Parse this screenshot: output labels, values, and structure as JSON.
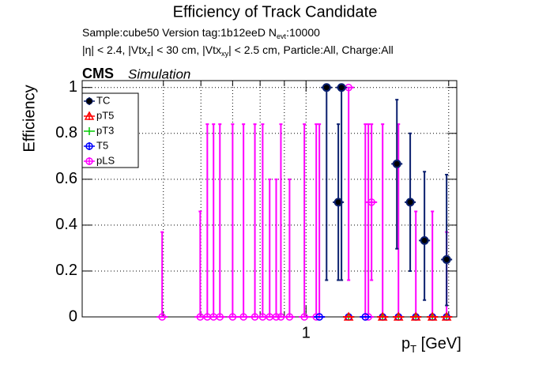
{
  "chart_data": {
    "type": "errorbar",
    "title": "Efficiency of Track Candidate",
    "subtitle_lines": [
      [
        {
          "text": "Sample:cube50   Version tag:1b12eeD  N",
          "sub": false
        },
        {
          "text": "evt",
          "sub": true
        },
        {
          "text": ":10000",
          "sub": false
        }
      ],
      [
        {
          "text": "|η| < 2.4, |Vtx",
          "sub": false
        },
        {
          "text": "z",
          "sub": true
        },
        {
          "text": "| < 30 cm, |Vtx",
          "sub": false
        },
        {
          "text": "xy",
          "sub": true
        },
        {
          "text": "| < 2.5 cm, Particle:All, Charge:All",
          "sub": false
        }
      ]
    ],
    "cms_label": "CMS",
    "cms_sublabel": "Simulation",
    "xlabel": [
      {
        "text": "p",
        "sub": false
      },
      {
        "text": "T",
        "sub": true
      },
      {
        "text": " [GeV]",
        "sub": false
      }
    ],
    "ylabel": "Efficiency",
    "xscale": "log",
    "xlim": [
      0.337,
      2.08
    ],
    "xticks": [
      1
    ],
    "xminor": [
      0.5,
      0.6,
      0.7,
      0.8,
      0.9,
      2
    ],
    "ylim": [
      0,
      1.03
    ],
    "yticks": [
      0,
      0.2,
      0.4,
      0.6,
      0.8,
      1
    ],
    "grid": true,
    "legend_position": "upper left",
    "series": [
      {
        "name": "pLS",
        "color": "#ff00ff",
        "marker": "open-circle",
        "x": [
          0.497,
          0.598,
          0.619,
          0.638,
          0.658,
          0.7,
          0.738,
          0.78,
          0.81,
          0.838,
          0.865,
          0.885,
          0.923,
          0.992,
          1.051,
          1.067,
          1.23,
          1.334,
          1.354,
          1.375,
          1.451,
          1.567,
          1.705,
          1.848,
          1.98
        ],
        "values": [
          0,
          0,
          0,
          0,
          0,
          0,
          0,
          0,
          0,
          0,
          0,
          0,
          0,
          0,
          0,
          0,
          1,
          0,
          0,
          0.5,
          0,
          0,
          0,
          0,
          0
        ],
        "err_low": [
          0,
          0,
          0,
          0,
          0,
          0,
          0,
          0,
          0,
          0,
          0,
          0,
          0,
          0,
          0,
          0,
          0.84,
          0,
          0,
          0.34,
          0,
          0,
          0,
          0,
          0
        ],
        "err_high": [
          0.37,
          0.46,
          0.84,
          0.84,
          0.84,
          0.84,
          0.84,
          0.84,
          0.84,
          0.6,
          0.6,
          0.84,
          0.6,
          0.84,
          0.84,
          0.84,
          0,
          0.84,
          0.84,
          0.34,
          0.84,
          0.84,
          0.46,
          0.46,
          0.37
        ]
      },
      {
        "name": "T5",
        "color": "#0000ff",
        "marker": "open-circle",
        "x": [
          1.067,
          1.23,
          1.334,
          1.451,
          1.567,
          1.705,
          1.848,
          1.98
        ],
        "values": [
          0,
          0,
          0,
          0,
          0,
          0,
          0,
          0
        ],
        "err_low": [
          0,
          0,
          0,
          0,
          0,
          0,
          0,
          0
        ],
        "err_high": [
          0,
          0,
          0,
          0,
          0,
          0,
          0,
          0
        ]
      },
      {
        "name": "pT3",
        "color": "#00cc00",
        "marker": "open-cross",
        "x": [
          1.23,
          1.451,
          1.567,
          1.705,
          1.848,
          1.98
        ],
        "values": [
          0,
          0,
          0,
          0,
          0,
          0
        ],
        "err_low": [
          0,
          0,
          0,
          0,
          0,
          0
        ],
        "err_high": [
          0,
          0,
          0,
          0,
          0,
          0
        ]
      },
      {
        "name": "pT5",
        "color": "#ff0000",
        "marker": "open-triangle",
        "x": [
          1.23,
          1.451,
          1.567,
          1.705,
          1.848,
          1.98
        ],
        "values": [
          0,
          0,
          0,
          0,
          0,
          0
        ],
        "err_low": [
          0,
          0,
          0,
          0,
          0,
          0
        ],
        "err_high": [
          0,
          0,
          0,
          0,
          0,
          0
        ]
      },
      {
        "name": "TC",
        "color": "#0a1f6e",
        "marker": "filled-circle",
        "x": [
          1.105,
          1.17,
          1.188,
          1.555,
          1.659,
          1.778,
          1.98
        ],
        "values": [
          1,
          0.5,
          1,
          0.667,
          0.5,
          0.333,
          0.25
        ],
        "err_low": [
          0.84,
          0.34,
          0.84,
          0.37,
          0.3,
          0.26,
          0.2
        ],
        "err_high": [
          0,
          0.34,
          0,
          0.28,
          0.3,
          0.3,
          0.37
        ]
      }
    ],
    "legend_order": [
      4,
      3,
      2,
      1,
      0
    ]
  }
}
